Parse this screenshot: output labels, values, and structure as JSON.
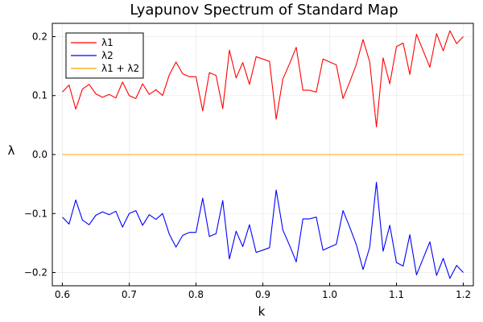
{
  "chart_data": {
    "type": "line",
    "title": "Lyapunov Spectrum of Standard Map",
    "xlabel": "k",
    "ylabel": "λ",
    "xlim": [
      0.585,
      1.215
    ],
    "ylim": [
      -0.2225,
      0.2225
    ],
    "xticks": [
      0.6,
      0.7,
      0.8,
      0.9,
      1.0,
      1.1,
      1.2
    ],
    "xtick_labels": [
      "0.6",
      "0.7",
      "0.8",
      "0.9",
      "1.0",
      "1.1",
      "1.2"
    ],
    "yticks": [
      -0.2,
      -0.1,
      0.0,
      0.1,
      0.2
    ],
    "ytick_labels": [
      "−0.2",
      "−0.1",
      "0.0",
      "0.1",
      "0.2"
    ],
    "grid": true,
    "legend_position": "top-left",
    "x": [
      0.6,
      0.61,
      0.62,
      0.63,
      0.64,
      0.65,
      0.66,
      0.67,
      0.68,
      0.69,
      0.7,
      0.71,
      0.72,
      0.73,
      0.74,
      0.75,
      0.76,
      0.77,
      0.78,
      0.79,
      0.8,
      0.81,
      0.82,
      0.83,
      0.84,
      0.85,
      0.86,
      0.87,
      0.88,
      0.89,
      0.9,
      0.91,
      0.92,
      0.93,
      0.94,
      0.95,
      0.96,
      0.97,
      0.98,
      0.99,
      1.0,
      1.01,
      1.02,
      1.03,
      1.04,
      1.05,
      1.06,
      1.07,
      1.08,
      1.09,
      1.1,
      1.11,
      1.12,
      1.13,
      1.14,
      1.15,
      1.16,
      1.17,
      1.18,
      1.19,
      1.2
    ],
    "series": [
      {
        "name": "λ1",
        "color": "#ff0000",
        "values": [
          0.106,
          0.118,
          0.077,
          0.111,
          0.119,
          0.103,
          0.097,
          0.102,
          0.096,
          0.123,
          0.1,
          0.095,
          0.12,
          0.102,
          0.11,
          0.1,
          0.135,
          0.157,
          0.137,
          0.132,
          0.132,
          0.074,
          0.139,
          0.134,
          0.078,
          0.177,
          0.13,
          0.156,
          0.119,
          0.166,
          0.162,
          0.158,
          0.06,
          0.128,
          0.154,
          0.182,
          0.109,
          0.109,
          0.106,
          0.162,
          0.157,
          0.152,
          0.095,
          0.123,
          0.153,
          0.195,
          0.157,
          0.047,
          0.164,
          0.12,
          0.183,
          0.189,
          0.136,
          0.204,
          0.176,
          0.148,
          0.205,
          0.176,
          0.21,
          0.188,
          0.2
        ]
      },
      {
        "name": "λ2",
        "color": "#0000ff",
        "values": [
          -0.106,
          -0.118,
          -0.077,
          -0.111,
          -0.119,
          -0.103,
          -0.097,
          -0.102,
          -0.096,
          -0.123,
          -0.1,
          -0.095,
          -0.12,
          -0.102,
          -0.11,
          -0.1,
          -0.135,
          -0.157,
          -0.137,
          -0.132,
          -0.132,
          -0.074,
          -0.139,
          -0.134,
          -0.078,
          -0.177,
          -0.13,
          -0.156,
          -0.119,
          -0.166,
          -0.162,
          -0.158,
          -0.06,
          -0.128,
          -0.154,
          -0.182,
          -0.109,
          -0.109,
          -0.106,
          -0.162,
          -0.157,
          -0.152,
          -0.095,
          -0.123,
          -0.153,
          -0.195,
          -0.157,
          -0.047,
          -0.164,
          -0.12,
          -0.183,
          -0.189,
          -0.136,
          -0.204,
          -0.176,
          -0.148,
          -0.205,
          -0.176,
          -0.21,
          -0.188,
          -0.2
        ]
      },
      {
        "name": "λ1 + λ2",
        "color": "#ffa500",
        "values": [
          0,
          0,
          0,
          0,
          0,
          0,
          0,
          0,
          0,
          0,
          0,
          0,
          0,
          0,
          0,
          0,
          0,
          0,
          0,
          0,
          0,
          0,
          0,
          0,
          0,
          0,
          0,
          0,
          0,
          0,
          0,
          0,
          0,
          0,
          0,
          0,
          0,
          0,
          0,
          0,
          0,
          0,
          0,
          0,
          0,
          0,
          0,
          0,
          0,
          0,
          0,
          0,
          0,
          0,
          0,
          0,
          0,
          0,
          0,
          0,
          0
        ]
      }
    ]
  }
}
